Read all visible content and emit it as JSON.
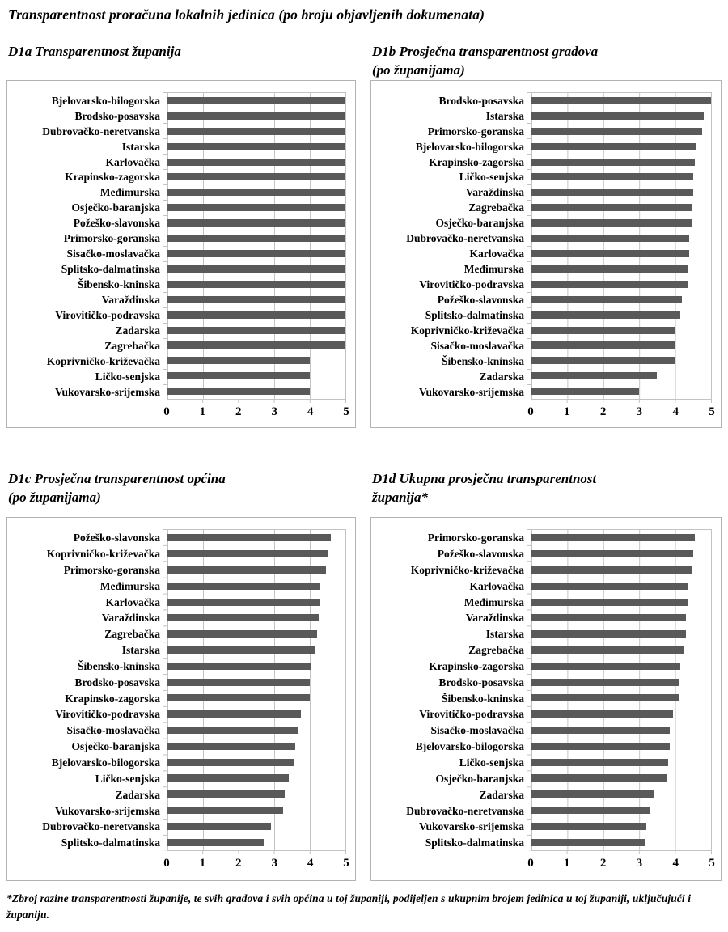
{
  "page": {
    "title": "Transparentnost proračuna lokalnih jedinica (po broju objavljenih dokumenata)",
    "footnote": "*Zbroj razine transparentnosti županije, te svih gradova i svih općina u toj županiji, podijeljen s ukupnim brojem jedinica u toj županiji, uključujući i županiju."
  },
  "colors": {
    "bar": "#595959",
    "grid": "#c3c3c3",
    "panel_border": "#b3b3b3",
    "text": "#000000"
  },
  "axis": {
    "ticks": [
      "0",
      "1",
      "2",
      "3",
      "4",
      "5"
    ],
    "min": 0,
    "max": 5
  },
  "chart_data": [
    {
      "id": "d1a",
      "type": "bar",
      "orientation": "horizontal",
      "title": "D1a Transparentnost županija",
      "xlabel": "",
      "ylabel": "",
      "xlim": [
        0,
        5
      ],
      "xticks": [
        "0",
        "1",
        "2",
        "3",
        "4",
        "5"
      ],
      "grid": true,
      "categories": [
        "Bjelovarsko-bilogorska",
        "Brodsko-posavska",
        "Dubrovačko-neretvanska",
        "Istarska",
        "Karlovačka",
        "Krapinsko-zagorska",
        "Međimurska",
        "Osječko-baranjska",
        "Požeško-slavonska",
        "Primorsko-goranska",
        "Sisačko-moslavačka",
        "Splitsko-dalmatinska",
        "Šibensko-kninska",
        "Varaždinska",
        "Virovitičko-podravska",
        "Zadarska",
        "Zagrebačka",
        "Koprivničko-križevačka",
        "Ličko-senjska",
        "Vukovarsko-srijemska"
      ],
      "values": [
        5,
        5,
        5,
        5,
        5,
        5,
        5,
        5,
        5,
        5,
        5,
        5,
        5,
        5,
        5,
        5,
        5,
        4,
        4,
        4
      ]
    },
    {
      "id": "d1b",
      "type": "bar",
      "orientation": "horizontal",
      "title": "D1b Prosječna transparentnost gradova\n(po županijama)",
      "xlabel": "",
      "ylabel": "",
      "xlim": [
        0,
        5
      ],
      "xticks": [
        "0",
        "1",
        "2",
        "3",
        "4",
        "5"
      ],
      "grid": true,
      "categories": [
        "Brodsko-posavska",
        "Istarska",
        "Primorsko-goranska",
        "Bjelovarsko-bilogorska",
        "Krapinsko-zagorska",
        "Ličko-senjska",
        "Varaždinska",
        "Zagrebačka",
        "Osječko-baranjska",
        "Dubrovačko-neretvanska",
        "Karlovačka",
        "Međimurska",
        "Virovitičko-podravska",
        "Požeško-slavonska",
        "Splitsko-dalmatinska",
        "Koprivničko-križevačka",
        "Sisačko-moslavačka",
        "Šibensko-kninska",
        "Zadarska",
        "Vukovarsko-srijemska"
      ],
      "values": [
        5.0,
        4.8,
        4.75,
        4.6,
        4.55,
        4.5,
        4.5,
        4.45,
        4.45,
        4.4,
        4.4,
        4.35,
        4.35,
        4.2,
        4.15,
        4.0,
        4.0,
        4.0,
        3.5,
        3.0
      ]
    },
    {
      "id": "d1c",
      "type": "bar",
      "orientation": "horizontal",
      "title": "D1c Prosječna transparentnost općina\n(po županijama)",
      "xlabel": "",
      "ylabel": "",
      "xlim": [
        0,
        5
      ],
      "xticks": [
        "0",
        "1",
        "2",
        "3",
        "4",
        "5"
      ],
      "grid": true,
      "categories": [
        "Požeško-slavonska",
        "Koprivničko-križevačka",
        "Primorsko-goranska",
        "Međimurska",
        "Karlovačka",
        "Varaždinska",
        "Zagrebačka",
        "Istarska",
        "Šibensko-kninska",
        "Brodsko-posavska",
        "Krapinsko-zagorska",
        "Virovitičko-podravska",
        "Sisačko-moslavačka",
        "Osječko-baranjska",
        "Bjelovarsko-bilogorska",
        "Ličko-senjska",
        "Zadarska",
        "Vukovarsko-srijemska",
        "Dubrovačko-neretvanska",
        "Splitsko-dalmatinska"
      ],
      "values": [
        4.6,
        4.5,
        4.45,
        4.3,
        4.3,
        4.25,
        4.2,
        4.15,
        4.05,
        4.0,
        4.0,
        3.75,
        3.65,
        3.6,
        3.55,
        3.4,
        3.3,
        3.25,
        2.9,
        2.7
      ]
    },
    {
      "id": "d1d",
      "type": "bar",
      "orientation": "horizontal",
      "title": "D1d Ukupna prosječna transparentnost\nžupanija*",
      "xlabel": "",
      "ylabel": "",
      "xlim": [
        0,
        5
      ],
      "xticks": [
        "0",
        "1",
        "2",
        "3",
        "4",
        "5"
      ],
      "grid": true,
      "categories": [
        "Primorsko-goranska",
        "Požeško-slavonska",
        "Koprivničko-križevačka",
        "Karlovačka",
        "Međimurska",
        "Varaždinska",
        "Istarska",
        "Zagrebačka",
        "Krapinsko-zagorska",
        "Brodsko-posavska",
        "Šibensko-kninska",
        "Virovitičko-podravska",
        "Sisačko-moslavačka",
        "Bjelovarsko-bilogorska",
        "Ličko-senjska",
        "Osječko-baranjska",
        "Zadarska",
        "Dubrovačko-neretvanska",
        "Vukovarsko-srijemska",
        "Splitsko-dalmatinska"
      ],
      "values": [
        4.55,
        4.5,
        4.45,
        4.35,
        4.35,
        4.3,
        4.3,
        4.25,
        4.15,
        4.1,
        4.1,
        3.95,
        3.85,
        3.85,
        3.8,
        3.75,
        3.4,
        3.3,
        3.2,
        3.15
      ]
    }
  ]
}
